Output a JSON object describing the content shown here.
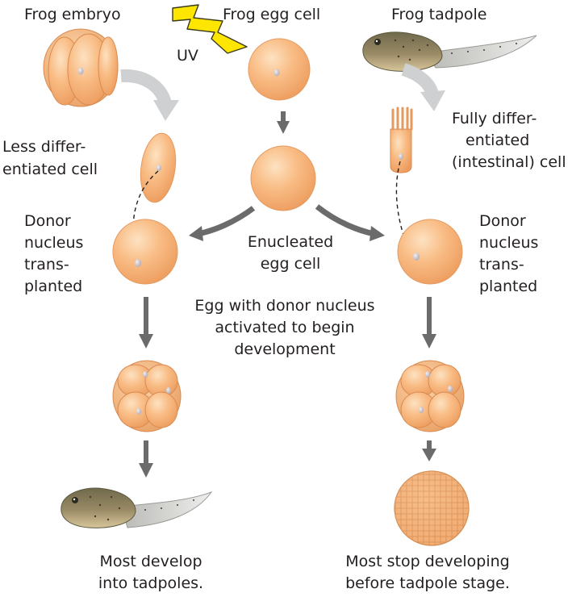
{
  "labels": {
    "frog_embryo": "Frog embryo",
    "uv": "UV",
    "frog_egg_cell": "Frog egg cell",
    "frog_tadpole": "Frog tadpole",
    "less_diff_1": "Less differ-",
    "less_diff_2": "entiated cell",
    "fully_diff_1": "Fully differ-",
    "fully_diff_2": "entiated",
    "fully_diff_3": "(intestinal) cell",
    "donor_left_1": "Donor",
    "donor_left_2": "nucleus",
    "donor_left_3": "trans-",
    "donor_left_4": "planted",
    "donor_right_1": "Donor",
    "donor_right_2": "nucleus",
    "donor_right_3": "trans-",
    "donor_right_4": "planted",
    "enucleated_1": "Enucleated",
    "enucleated_2": "egg cell",
    "activated_1": "Egg with donor nucleus",
    "activated_2": "activated to begin",
    "activated_3": "development",
    "result_left_1": "Most develop",
    "result_left_2": "into tadpoles.",
    "result_right_1": "Most stop developing",
    "result_right_2": "before tadpole stage."
  },
  "colors": {
    "cell_fill": "#f9b57c",
    "cell_edge": "#e49a5f",
    "nucleus": "#cfc6cf",
    "arrow": "#6b6b6b",
    "curved_arrow": "#cfd0d1",
    "uv_bolt": "#ffe600",
    "tadpole_body": "#8e8062",
    "tadpole_fin": "#d8d9d6"
  }
}
